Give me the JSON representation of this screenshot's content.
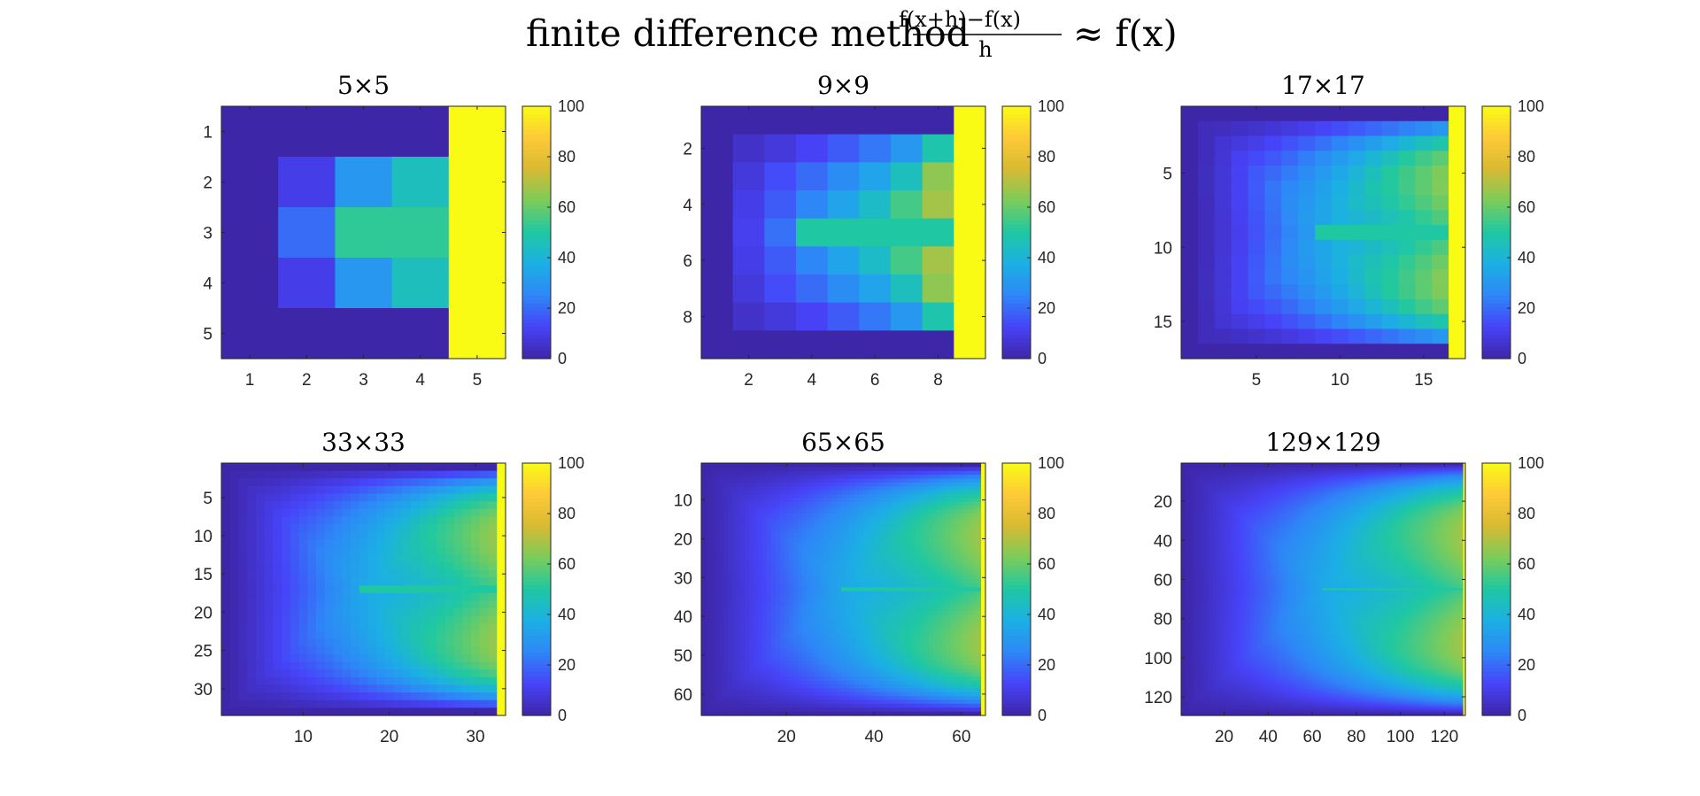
{
  "figure": {
    "title_text": "finite difference method",
    "title_frac_num": "f(x+h)−f(x)",
    "title_frac_den": "h",
    "title_rhs": "≈ f(x)"
  },
  "colors": {
    "background": "#ffffff",
    "axis_edge": "#262626",
    "colormap": "parula",
    "colormap_stops": [
      "#3e26a8",
      "#4743f8",
      "#2e87f7",
      "#1cafe4",
      "#1fc8a2",
      "#7bcc5b",
      "#d8ba32",
      "#feca38",
      "#f9fb15"
    ]
  },
  "chart_data": [
    {
      "type": "heatmap",
      "title": "5×5",
      "n": 5,
      "xticks": [
        1,
        2,
        3,
        4,
        5
      ],
      "yticks": [
        1,
        2,
        3,
        4,
        5
      ],
      "clim": [
        0,
        100
      ],
      "colorbar_ticks": [
        0,
        20,
        40,
        60,
        80,
        100
      ],
      "colormap": "parula",
      "values": [
        [
          0,
          0,
          0,
          0,
          100
        ],
        [
          0,
          10,
          30,
          45,
          100
        ],
        [
          0,
          20,
          52,
          52,
          100
        ],
        [
          0,
          10,
          30,
          45,
          100
        ],
        [
          0,
          0,
          0,
          0,
          100
        ]
      ]
    },
    {
      "type": "heatmap",
      "title": "9×9",
      "n": 9,
      "xticks": [
        2,
        4,
        6,
        8
      ],
      "yticks": [
        2,
        4,
        6,
        8
      ],
      "clim": [
        0,
        100
      ],
      "colorbar_ticks": [
        0,
        20,
        40,
        60,
        80,
        100
      ],
      "colormap": "parula",
      "values": [
        [
          0,
          0,
          0,
          0,
          0,
          0,
          0,
          0,
          100
        ],
        [
          0,
          5,
          8,
          12,
          17,
          22,
          30,
          48,
          100
        ],
        [
          0,
          8,
          14,
          20,
          27,
          34,
          45,
          65,
          100
        ],
        [
          0,
          10,
          17,
          25,
          34,
          43,
          55,
          68,
          100
        ],
        [
          0,
          11,
          21,
          50,
          50,
          50,
          50,
          50,
          100
        ],
        [
          0,
          10,
          17,
          25,
          34,
          43,
          55,
          68,
          100
        ],
        [
          0,
          8,
          14,
          20,
          27,
          34,
          45,
          65,
          100
        ],
        [
          0,
          5,
          8,
          12,
          17,
          22,
          30,
          48,
          100
        ],
        [
          0,
          0,
          0,
          0,
          0,
          0,
          0,
          0,
          100
        ]
      ]
    },
    {
      "type": "heatmap",
      "title": "17×17",
      "n": 17,
      "xticks": [
        5,
        10,
        15
      ],
      "yticks": [
        5,
        10,
        15
      ],
      "clim": [
        0,
        100
      ],
      "colorbar_ticks": [
        0,
        20,
        40,
        60,
        80,
        100
      ],
      "colormap": "parula",
      "values": "same field sampled on a 17×17 grid (see description)"
    },
    {
      "type": "heatmap",
      "title": "33×33",
      "n": 33,
      "xticks": [
        10,
        20,
        30
      ],
      "yticks": [
        5,
        10,
        15,
        20,
        25,
        30
      ],
      "clim": [
        0,
        100
      ],
      "colorbar_ticks": [
        0,
        20,
        40,
        60,
        80,
        100
      ],
      "colormap": "parula",
      "values": "same field sampled on a 33×33 grid"
    },
    {
      "type": "heatmap",
      "title": "65×65",
      "n": 65,
      "xticks": [
        20,
        40,
        60
      ],
      "yticks": [
        10,
        20,
        30,
        40,
        50,
        60
      ],
      "clim": [
        0,
        100
      ],
      "colorbar_ticks": [
        0,
        20,
        40,
        60,
        80,
        100
      ],
      "colormap": "parula",
      "values": "same field sampled on a 65×65 grid"
    },
    {
      "type": "heatmap",
      "title": "129×129",
      "n": 129,
      "xticks": [
        20,
        40,
        60,
        80,
        100,
        120
      ],
      "yticks": [
        20,
        40,
        60,
        80,
        100,
        120
      ],
      "clim": [
        0,
        100
      ],
      "colorbar_ticks": [
        0,
        20,
        40,
        60,
        80,
        100
      ],
      "colormap": "parula",
      "values": "same field sampled on a 129×129 grid"
    }
  ]
}
